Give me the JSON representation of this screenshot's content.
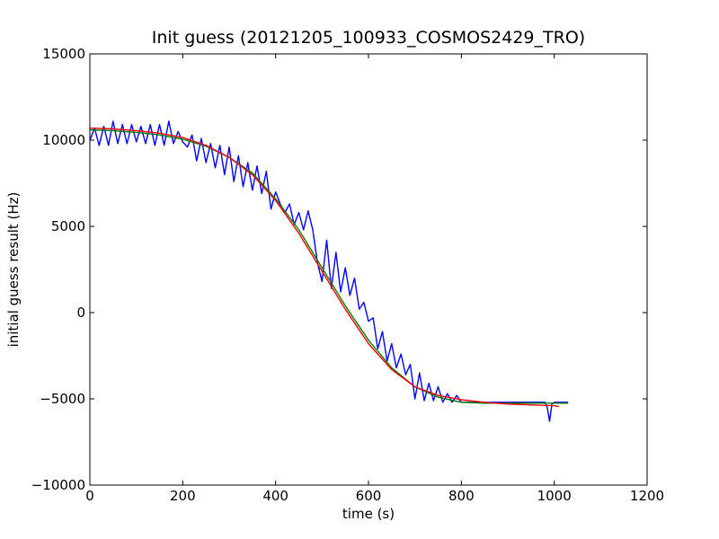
{
  "chart_data": {
    "type": "line",
    "title": "Init guess (20121205_100933_COSMOS2429_TRO)",
    "xlabel": "time (s)",
    "ylabel": "initial guess result (Hz)",
    "xlim": [
      0,
      1200
    ],
    "ylim": [
      -10000,
      15000
    ],
    "x_ticks": [
      0,
      200,
      400,
      600,
      800,
      1000,
      1200
    ],
    "y_ticks": [
      -10000,
      -5000,
      0,
      5000,
      10000,
      15000
    ],
    "x_tick_labels": [
      "0",
      "200",
      "400",
      "600",
      "800",
      "1000",
      "1200"
    ],
    "y_tick_labels": [
      "−10000",
      "−5000",
      "0",
      "5000",
      "10000",
      "15000"
    ],
    "grid": false,
    "colors": {
      "blue": "#0000ff",
      "green": "#008000",
      "red": "#ff0000"
    },
    "series": [
      {
        "color": "#0000ff",
        "x": [
          0,
          10,
          20,
          30,
          40,
          50,
          60,
          70,
          80,
          90,
          100,
          110,
          120,
          130,
          140,
          150,
          160,
          170,
          180,
          190,
          200,
          210,
          220,
          230,
          240,
          250,
          260,
          270,
          280,
          290,
          300,
          310,
          320,
          330,
          340,
          350,
          360,
          370,
          380,
          390,
          400,
          410,
          420,
          430,
          440,
          450,
          460,
          470,
          480,
          490,
          500,
          510,
          520,
          530,
          540,
          550,
          560,
          570,
          580,
          590,
          600,
          610,
          620,
          630,
          640,
          650,
          660,
          670,
          680,
          690,
          700,
          710,
          720,
          730,
          740,
          750,
          760,
          770,
          780,
          790,
          800,
          850,
          900,
          950,
          980,
          985,
          990,
          995,
          1000,
          1030
        ],
        "y": [
          10000,
          10700,
          9700,
          10800,
          9700,
          11100,
          9800,
          10900,
          9800,
          10900,
          9900,
          10800,
          9800,
          10900,
          9700,
          10900,
          9700,
          11100,
          9800,
          10500,
          9900,
          9600,
          10300,
          8800,
          10100,
          8700,
          9800,
          8400,
          9700,
          8000,
          9600,
          7600,
          9100,
          7300,
          8700,
          7100,
          8500,
          6900,
          8200,
          6000,
          7000,
          6300,
          5800,
          6300,
          5100,
          5800,
          4800,
          5900,
          4800,
          2900,
          1800,
          4200,
          1400,
          3500,
          1200,
          2600,
          1000,
          2000,
          200,
          600,
          -500,
          -300,
          -2100,
          -1100,
          -2800,
          -1800,
          -3200,
          -2400,
          -3600,
          -3000,
          -5000,
          -3500,
          -5100,
          -4100,
          -5100,
          -4300,
          -5200,
          -4700,
          -5200,
          -4800,
          -5200,
          -5200,
          -5200,
          -5200,
          -5200,
          -5500,
          -6300,
          -5300,
          -5200,
          -5200
        ]
      },
      {
        "color": "#008000",
        "x": [
          0,
          50,
          100,
          150,
          200,
          250,
          300,
          350,
          400,
          450,
          500,
          550,
          600,
          650,
          700,
          750,
          800,
          850,
          900,
          950,
          1000,
          1030
        ],
        "y": [
          10600,
          10550,
          10450,
          10300,
          10050,
          9650,
          9000,
          8100,
          6600,
          4800,
          2600,
          400,
          -1600,
          -3200,
          -4300,
          -4900,
          -5200,
          -5250,
          -5250,
          -5250,
          -5250,
          -5250
        ]
      },
      {
        "color": "#ff0000",
        "x": [
          0,
          50,
          100,
          150,
          200,
          250,
          300,
          350,
          400,
          450,
          500,
          550,
          600,
          650,
          700,
          750,
          800,
          850,
          900,
          950,
          1000,
          1010
        ],
        "y": [
          10700,
          10650,
          10550,
          10400,
          10150,
          9700,
          9000,
          8000,
          6500,
          4600,
          2400,
          200,
          -1800,
          -3300,
          -4300,
          -4800,
          -5050,
          -5200,
          -5300,
          -5350,
          -5400,
          -5450
        ]
      }
    ]
  }
}
